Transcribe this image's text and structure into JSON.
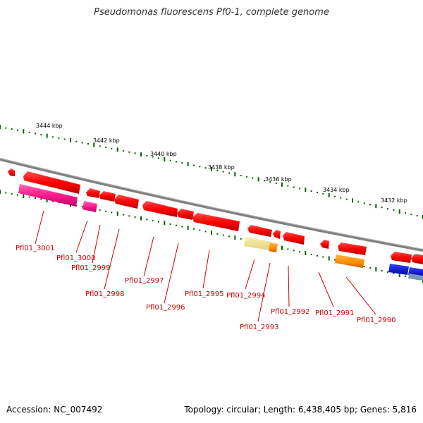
{
  "title": "Pseudomonas fluorescens Pf0-1, complete genome",
  "footer": {
    "accession": "Accession: NC_007492",
    "summary": "Topology: circular; Length: 6,438,405 bp; Genes: 5,816"
  },
  "colors": {
    "forward_gene": "#ff0000",
    "backbone": "#808080",
    "tick": "#006400",
    "label": "#cc0000",
    "magenta_gene": "#ff3399",
    "orange_gene": "#ff8c00",
    "pale_gene": "#f0e68c",
    "blue_gene": "#0000ee",
    "steel_gene": "#7799bb"
  },
  "scale_labels": [
    "3444 kbp",
    "3442 kbp",
    "3440 kbp",
    "3438 kbp",
    "3436 kbp",
    "3434 kbp",
    "3432 kbp"
  ],
  "gene_labels": [
    "Pfl01_3001",
    "Pfl01_3000",
    "Pfl01_2999",
    "Pfl01_2998",
    "Pfl01_2997",
    "Pfl01_2996",
    "Pfl01_2995",
    "Pfl01_2994",
    "Pfl01_2993",
    "Pfl01_2992",
    "Pfl01_2991",
    "Pfl01_2990"
  ]
}
